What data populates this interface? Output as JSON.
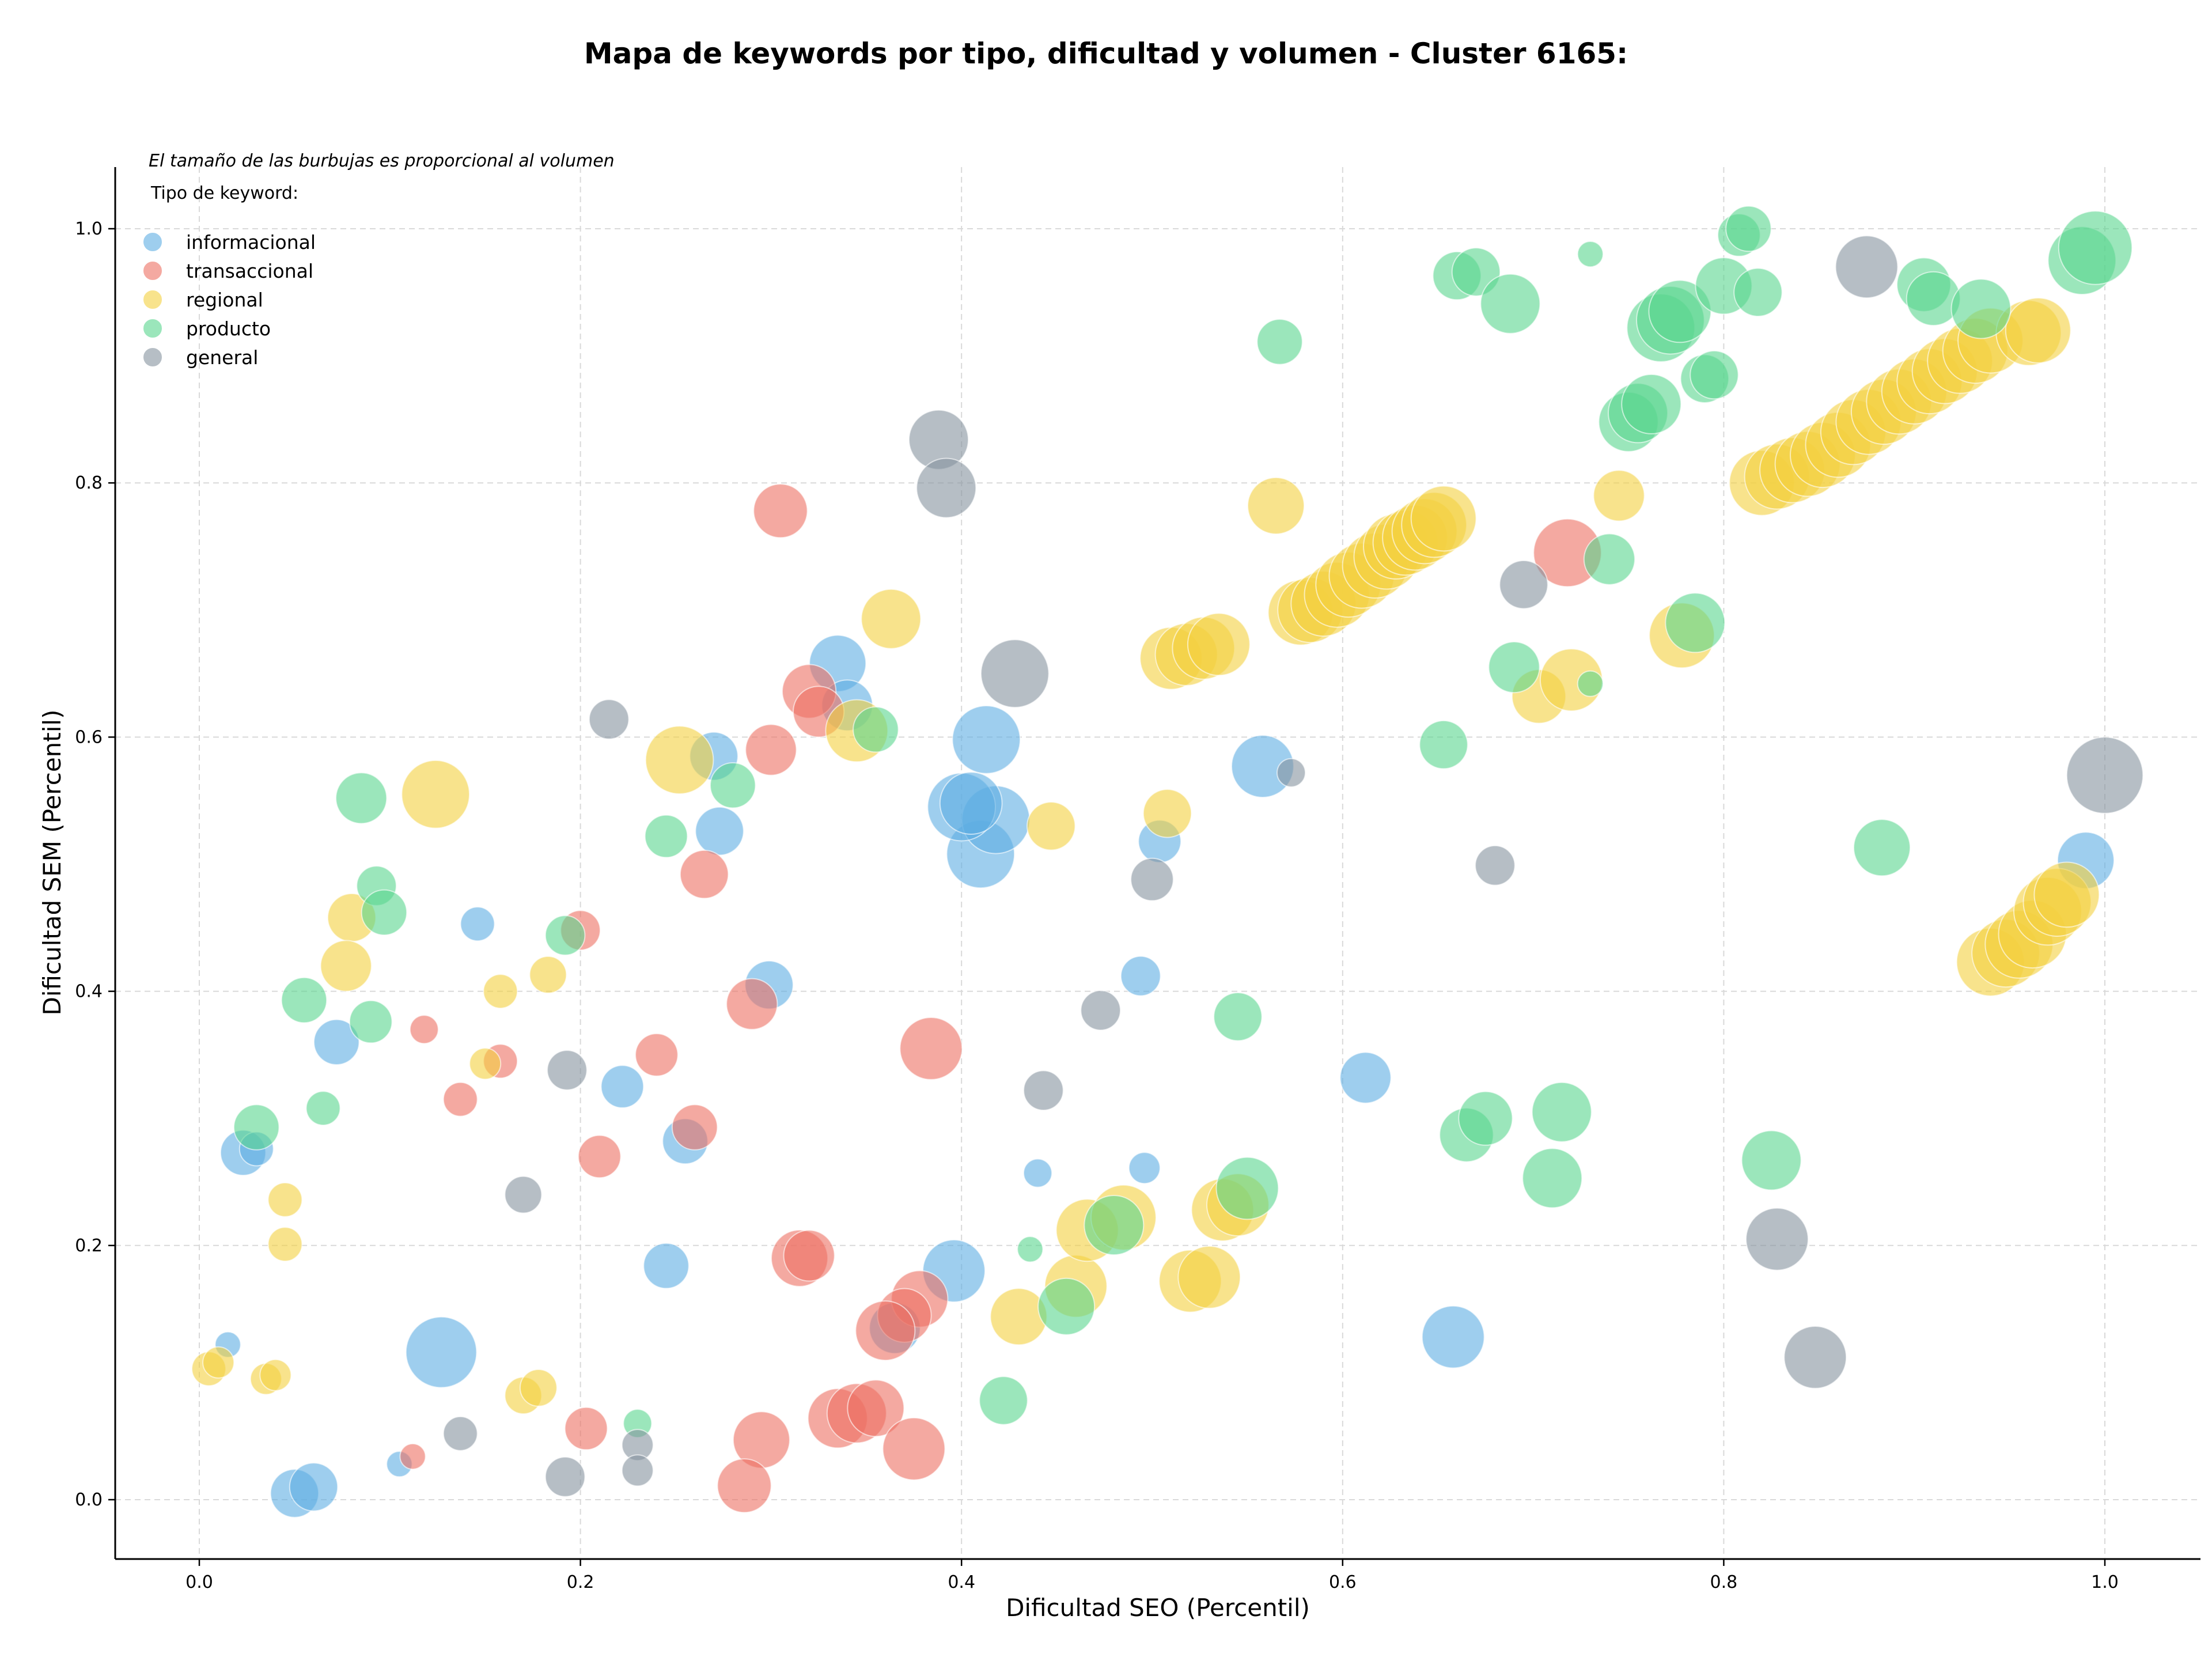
{
  "chart_data": {
    "type": "scatter",
    "title": "Mapa de keywords por tipo, dificultad y volumen - Cluster 6165:",
    "xlabel": "Dificultad SEO (Percentil)",
    "ylabel": "Dificultad SEM (Percentil)",
    "xlim": [
      -0.045,
      1.05
    ],
    "ylim": [
      -0.045,
      1.05
    ],
    "xticks": [
      0.0,
      0.2,
      0.4,
      0.6,
      0.8,
      1.0
    ],
    "yticks": [
      0.0,
      0.2,
      0.4,
      0.6,
      0.8,
      1.0
    ],
    "xtick_labels": [
      "0.0",
      "0.2",
      "0.4",
      "0.6",
      "0.8",
      "1.0"
    ],
    "ytick_labels": [
      "0.0",
      "0.2",
      "0.4",
      "0.6",
      "0.8",
      "1.0"
    ],
    "grid": true,
    "note": "El tamaño de las burbujas es proporcional al volumen",
    "legend_title": "Tipo de keyword:",
    "legend_position": "top-left",
    "series": [
      {
        "name": "informacional",
        "color": "#5dade2",
        "points": [
          [
            0.335,
            0.658,
            20
          ],
          [
            0.34,
            0.625,
            18
          ],
          [
            0.27,
            0.585,
            17
          ],
          [
            0.413,
            0.598,
            24
          ],
          [
            0.41,
            0.508,
            24
          ],
          [
            0.418,
            0.535,
            24
          ],
          [
            0.4,
            0.545,
            24
          ],
          [
            0.405,
            0.548,
            22
          ],
          [
            0.273,
            0.526,
            17
          ],
          [
            0.299,
            0.405,
            17
          ],
          [
            0.558,
            0.577,
            22
          ],
          [
            0.504,
            0.518,
            15
          ],
          [
            0.146,
            0.453,
            12
          ],
          [
            0.072,
            0.36,
            16
          ],
          [
            0.222,
            0.325,
            15
          ],
          [
            0.255,
            0.282,
            16
          ],
          [
            0.023,
            0.273,
            16
          ],
          [
            0.03,
            0.276,
            12
          ],
          [
            0.494,
            0.412,
            14
          ],
          [
            0.612,
            0.332,
            18
          ],
          [
            0.44,
            0.257,
            10
          ],
          [
            0.496,
            0.261,
            11
          ],
          [
            0.245,
            0.184,
            16
          ],
          [
            0.396,
            0.18,
            22
          ],
          [
            0.127,
            0.116,
            25
          ],
          [
            0.05,
            0.005,
            17
          ],
          [
            0.06,
            0.01,
            17
          ],
          [
            0.365,
            0.135,
            18
          ],
          [
            0.015,
            0.122,
            9
          ],
          [
            0.105,
            0.028,
            9
          ],
          [
            0.658,
            0.128,
            22
          ],
          [
            0.99,
            0.503,
            20
          ]
        ]
      },
      {
        "name": "transaccional",
        "color": "#ec7063",
        "points": [
          [
            0.305,
            0.778,
            19
          ],
          [
            0.32,
            0.636,
            19
          ],
          [
            0.325,
            0.62,
            18
          ],
          [
            0.3,
            0.59,
            18
          ],
          [
            0.265,
            0.492,
            17
          ],
          [
            0.2,
            0.448,
            14
          ],
          [
            0.118,
            0.37,
            10
          ],
          [
            0.158,
            0.345,
            12
          ],
          [
            0.24,
            0.35,
            15
          ],
          [
            0.29,
            0.39,
            18
          ],
          [
            0.137,
            0.315,
            12
          ],
          [
            0.26,
            0.293,
            16
          ],
          [
            0.21,
            0.27,
            15
          ],
          [
            0.384,
            0.355,
            22
          ],
          [
            0.315,
            0.19,
            20
          ],
          [
            0.32,
            0.192,
            18
          ],
          [
            0.378,
            0.158,
            20
          ],
          [
            0.37,
            0.145,
            19
          ],
          [
            0.36,
            0.133,
            21
          ],
          [
            0.335,
            0.064,
            21
          ],
          [
            0.345,
            0.068,
            21
          ],
          [
            0.355,
            0.072,
            20
          ],
          [
            0.375,
            0.04,
            22
          ],
          [
            0.295,
            0.047,
            20
          ],
          [
            0.286,
            0.011,
            19
          ],
          [
            0.203,
            0.056,
            15
          ],
          [
            0.112,
            0.034,
            9
          ],
          [
            0.718,
            0.745,
            24
          ]
        ]
      },
      {
        "name": "regional",
        "color": "#f4d03f",
        "points": [
          [
            0.124,
            0.555,
            24
          ],
          [
            0.252,
            0.582,
            24
          ],
          [
            0.363,
            0.693,
            21
          ],
          [
            0.345,
            0.605,
            22
          ],
          [
            0.08,
            0.458,
            17
          ],
          [
            0.077,
            0.42,
            18
          ],
          [
            0.183,
            0.413,
            13
          ],
          [
            0.158,
            0.4,
            12
          ],
          [
            0.15,
            0.343,
            11
          ],
          [
            0.045,
            0.236,
            12
          ],
          [
            0.045,
            0.201,
            12
          ],
          [
            0.005,
            0.103,
            12
          ],
          [
            0.01,
            0.108,
            11
          ],
          [
            0.035,
            0.095,
            11
          ],
          [
            0.04,
            0.098,
            11
          ],
          [
            0.17,
            0.082,
            13
          ],
          [
            0.178,
            0.088,
            13
          ],
          [
            0.43,
            0.144,
            20
          ],
          [
            0.46,
            0.168,
            22
          ],
          [
            0.466,
            0.212,
            22
          ],
          [
            0.485,
            0.222,
            23
          ],
          [
            0.52,
            0.172,
            22
          ],
          [
            0.53,
            0.175,
            22
          ],
          [
            0.537,
            0.228,
            22
          ],
          [
            0.545,
            0.232,
            22
          ],
          [
            0.447,
            0.53,
            17
          ],
          [
            0.508,
            0.54,
            17
          ],
          [
            0.565,
            0.782,
            20
          ],
          [
            0.745,
            0.79,
            18
          ],
          [
            0.703,
            0.632,
            19
          ],
          [
            0.72,
            0.645,
            22
          ],
          [
            0.778,
            0.68,
            23
          ],
          [
            0.51,
            0.662,
            22
          ],
          [
            0.518,
            0.665,
            22
          ],
          [
            0.527,
            0.67,
            22
          ],
          [
            0.535,
            0.673,
            22
          ],
          [
            0.578,
            0.698,
            23
          ],
          [
            0.583,
            0.7,
            23
          ],
          [
            0.59,
            0.705,
            23
          ],
          [
            0.597,
            0.712,
            23
          ],
          [
            0.603,
            0.72,
            23
          ],
          [
            0.61,
            0.727,
            23
          ],
          [
            0.617,
            0.735,
            23
          ],
          [
            0.623,
            0.742,
            23
          ],
          [
            0.628,
            0.75,
            23
          ],
          [
            0.633,
            0.753,
            23
          ],
          [
            0.638,
            0.757,
            23
          ],
          [
            0.643,
            0.762,
            23
          ],
          [
            0.648,
            0.767,
            23
          ],
          [
            0.653,
            0.772,
            23
          ],
          [
            0.82,
            0.8,
            23
          ],
          [
            0.828,
            0.805,
            23
          ],
          [
            0.836,
            0.81,
            23
          ],
          [
            0.844,
            0.815,
            23
          ],
          [
            0.852,
            0.822,
            23
          ],
          [
            0.86,
            0.83,
            23
          ],
          [
            0.868,
            0.84,
            23
          ],
          [
            0.876,
            0.848,
            23
          ],
          [
            0.884,
            0.856,
            23
          ],
          [
            0.892,
            0.864,
            23
          ],
          [
            0.9,
            0.872,
            23
          ],
          [
            0.908,
            0.88,
            23
          ],
          [
            0.916,
            0.888,
            23
          ],
          [
            0.924,
            0.896,
            23
          ],
          [
            0.932,
            0.904,
            23
          ],
          [
            0.94,
            0.912,
            23
          ],
          [
            0.96,
            0.918,
            23
          ],
          [
            0.965,
            0.92,
            23
          ],
          [
            0.94,
            0.423,
            24
          ],
          [
            0.948,
            0.43,
            24
          ],
          [
            0.955,
            0.437,
            24
          ],
          [
            0.962,
            0.445,
            24
          ],
          [
            0.97,
            0.463,
            24
          ],
          [
            0.975,
            0.47,
            24
          ],
          [
            0.98,
            0.476,
            23
          ]
        ]
      },
      {
        "name": "producto",
        "color": "#58d68d",
        "points": [
          [
            0.085,
            0.552,
            18
          ],
          [
            0.093,
            0.483,
            14
          ],
          [
            0.097,
            0.462,
            16
          ],
          [
            0.055,
            0.393,
            16
          ],
          [
            0.09,
            0.376,
            15
          ],
          [
            0.065,
            0.308,
            12
          ],
          [
            0.03,
            0.293,
            16
          ],
          [
            0.245,
            0.522,
            15
          ],
          [
            0.28,
            0.562,
            16
          ],
          [
            0.355,
            0.606,
            16
          ],
          [
            0.192,
            0.444,
            14
          ],
          [
            0.23,
            0.06,
            10
          ],
          [
            0.422,
            0.078,
            17
          ],
          [
            0.436,
            0.197,
            9
          ],
          [
            0.455,
            0.152,
            20
          ],
          [
            0.48,
            0.216,
            21
          ],
          [
            0.55,
            0.245,
            22
          ],
          [
            0.545,
            0.38,
            17
          ],
          [
            0.567,
            0.911,
            16
          ],
          [
            0.66,
            0.963,
            17
          ],
          [
            0.67,
            0.966,
            17
          ],
          [
            0.688,
            0.941,
            21
          ],
          [
            0.73,
            0.98,
            9
          ],
          [
            0.74,
            0.74,
            18
          ],
          [
            0.69,
            0.655,
            18
          ],
          [
            0.73,
            0.642,
            9
          ],
          [
            0.653,
            0.594,
            17
          ],
          [
            0.665,
            0.287,
            19
          ],
          [
            0.675,
            0.3,
            19
          ],
          [
            0.71,
            0.253,
            21
          ],
          [
            0.715,
            0.305,
            21
          ],
          [
            0.75,
            0.848,
            21
          ],
          [
            0.755,
            0.855,
            21
          ],
          [
            0.762,
            0.862,
            21
          ],
          [
            0.767,
            0.922,
            24
          ],
          [
            0.772,
            0.928,
            24
          ],
          [
            0.777,
            0.935,
            22
          ],
          [
            0.79,
            0.882,
            17
          ],
          [
            0.795,
            0.885,
            17
          ],
          [
            0.8,
            0.955,
            20
          ],
          [
            0.808,
            0.995,
            15
          ],
          [
            0.813,
            1.0,
            16
          ],
          [
            0.818,
            0.95,
            17
          ],
          [
            0.785,
            0.69,
            21
          ],
          [
            0.883,
            0.513,
            20
          ],
          [
            0.825,
            0.267,
            21
          ],
          [
            0.905,
            0.956,
            19
          ],
          [
            0.91,
            0.945,
            19
          ],
          [
            0.935,
            0.937,
            21
          ],
          [
            0.988,
            0.975,
            24
          ],
          [
            0.995,
            0.985,
            26
          ]
        ]
      },
      {
        "name": "general",
        "color": "#85929e",
        "points": [
          [
            0.215,
            0.614,
            14
          ],
          [
            0.388,
            0.834,
            21
          ],
          [
            0.392,
            0.796,
            21
          ],
          [
            0.428,
            0.65,
            24
          ],
          [
            0.573,
            0.572,
            10
          ],
          [
            0.5,
            0.488,
            15
          ],
          [
            0.473,
            0.385,
            14
          ],
          [
            0.443,
            0.322,
            14
          ],
          [
            0.193,
            0.338,
            14
          ],
          [
            0.17,
            0.24,
            13
          ],
          [
            0.137,
            0.052,
            12
          ],
          [
            0.192,
            0.018,
            14
          ],
          [
            0.23,
            0.043,
            11
          ],
          [
            0.23,
            0.023,
            11
          ],
          [
            0.68,
            0.499,
            14
          ],
          [
            0.695,
            0.72,
            17
          ],
          [
            0.875,
            0.97,
            22
          ],
          [
            0.828,
            0.205,
            22
          ],
          [
            0.848,
            0.112,
            22
          ],
          [
            1.0,
            0.57,
            27
          ]
        ]
      }
    ]
  }
}
